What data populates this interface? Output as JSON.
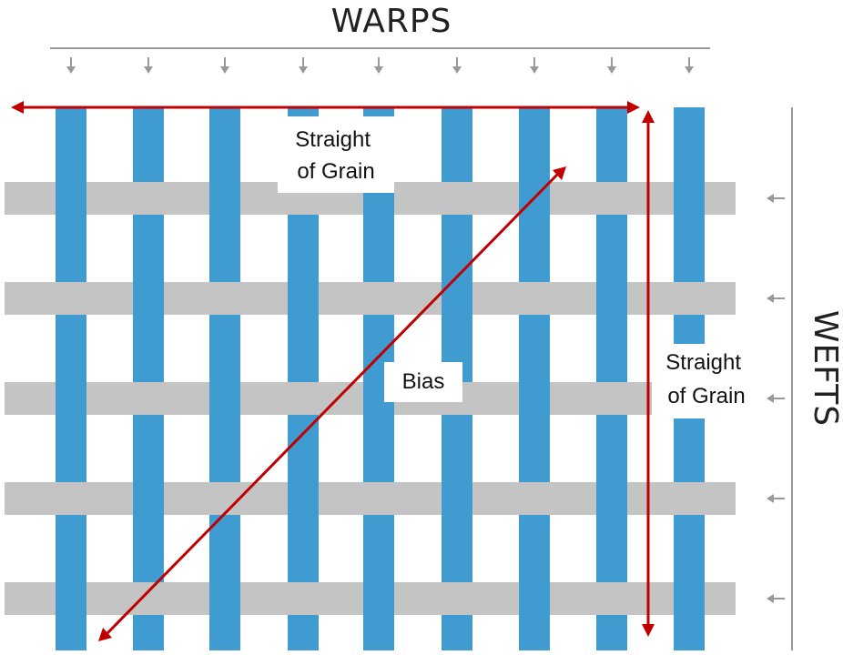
{
  "diagram": {
    "top_label": "WARPS",
    "side_label": "WEFTS",
    "labels": [
      {
        "lines": [
          "Straight",
          "of Grain"
        ]
      },
      {
        "lines": [
          "Bias"
        ]
      },
      {
        "lines": [
          "Straight",
          "of Grain"
        ]
      }
    ]
  }
}
